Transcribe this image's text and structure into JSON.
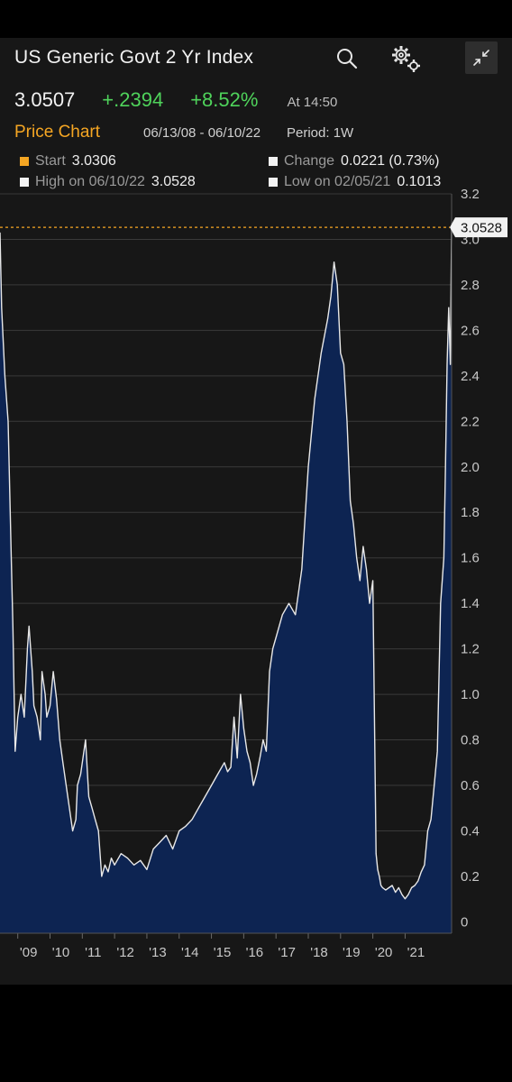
{
  "header": {
    "title": "US Generic Govt 2 Yr Index",
    "last_price": "3.0507",
    "net_change": "+.2394",
    "pct_change": "+8.52%",
    "time": "At 14:50"
  },
  "subheader": {
    "chart_label": "Price Chart",
    "date_range": "06/13/08 - 06/10/22",
    "period": "Period: 1W"
  },
  "stats": {
    "start_label": "Start",
    "start_value": "3.0306",
    "change_label": "Change",
    "change_value": "0.0221 (0.73%)",
    "high_label": "High on 06/10/22",
    "high_value": "3.0528",
    "low_label": "Low on 02/05/21",
    "low_value": "0.1013"
  },
  "icons": {
    "search": "search-icon",
    "settings": "gear-icon",
    "collapse": "collapse-icon"
  },
  "colors": {
    "background": "#171717",
    "area_fill": "#0d2452",
    "line": "#e8e8e8",
    "positive": "#4fd35b",
    "accent": "#f5a623",
    "high_marker": "#f5a623"
  },
  "chart_data": {
    "type": "area",
    "title": "US Generic Govt 2 Yr Index",
    "xlabel": "",
    "ylabel": "",
    "x_tick_labels": [
      "'09",
      "'10",
      "'11",
      "'12",
      "'13",
      "'14",
      "'15",
      "'16",
      "'17",
      "'18",
      "'19",
      "'20",
      "'21"
    ],
    "y_tick_labels": [
      "0",
      "0.2",
      "0.4",
      "0.6",
      "0.8",
      "1.0",
      "1.2",
      "1.4",
      "1.6",
      "1.8",
      "2.0",
      "2.2",
      "2.4",
      "2.6",
      "2.8",
      "3.0",
      "3.2"
    ],
    "xlim": [
      2008.45,
      2022.44
    ],
    "ylim": [
      -0.05,
      3.2
    ],
    "high_marker": {
      "value": 3.0528,
      "label": "3.0528"
    },
    "grid": true,
    "series": [
      {
        "x": [
          2008.45,
          2008.5,
          2008.6,
          2008.7,
          2008.8,
          2008.85,
          2008.92,
          2009.0,
          2009.1,
          2009.2,
          2009.3,
          2009.35,
          2009.45,
          2009.5,
          2009.6,
          2009.7,
          2009.75,
          2009.85,
          2009.9,
          2010.0,
          2010.1,
          2010.2,
          2010.3,
          2010.4,
          2010.5,
          2010.6,
          2010.7,
          2010.8,
          2010.85,
          2010.95,
          2011.0,
          2011.1,
          2011.2,
          2011.3,
          2011.4,
          2011.5,
          2011.6,
          2011.7,
          2011.8,
          2011.9,
          2012.0,
          2012.2,
          2012.4,
          2012.6,
          2012.8,
          2013.0,
          2013.2,
          2013.4,
          2013.6,
          2013.8,
          2014.0,
          2014.2,
          2014.4,
          2014.6,
          2014.8,
          2015.0,
          2015.2,
          2015.4,
          2015.5,
          2015.6,
          2015.7,
          2015.8,
          2015.9,
          2016.0,
          2016.1,
          2016.2,
          2016.3,
          2016.4,
          2016.5,
          2016.6,
          2016.7,
          2016.8,
          2016.9,
          2017.0,
          2017.2,
          2017.4,
          2017.6,
          2017.8,
          2018.0,
          2018.2,
          2018.4,
          2018.6,
          2018.7,
          2018.8,
          2018.9,
          2019.0,
          2019.1,
          2019.2,
          2019.3,
          2019.4,
          2019.5,
          2019.6,
          2019.7,
          2019.8,
          2019.9,
          2020.0,
          2020.1,
          2020.15,
          2020.2,
          2020.25,
          2020.3,
          2020.4,
          2020.5,
          2020.6,
          2020.7,
          2020.8,
          2020.9,
          2021.0,
          2021.1,
          2021.2,
          2021.3,
          2021.4,
          2021.5,
          2021.6,
          2021.7,
          2021.8,
          2021.9,
          2022.0,
          2022.1,
          2022.2,
          2022.25,
          2022.3,
          2022.35,
          2022.4,
          2022.44
        ],
        "values": [
          3.03,
          2.7,
          2.4,
          2.2,
          1.6,
          1.3,
          0.75,
          0.9,
          1.0,
          0.9,
          1.2,
          1.3,
          1.1,
          0.95,
          0.9,
          0.8,
          1.1,
          1.0,
          0.9,
          0.95,
          1.1,
          0.98,
          0.8,
          0.7,
          0.6,
          0.5,
          0.4,
          0.45,
          0.6,
          0.65,
          0.7,
          0.8,
          0.55,
          0.5,
          0.45,
          0.4,
          0.2,
          0.25,
          0.22,
          0.28,
          0.25,
          0.3,
          0.28,
          0.25,
          0.27,
          0.23,
          0.32,
          0.35,
          0.38,
          0.32,
          0.4,
          0.42,
          0.45,
          0.5,
          0.55,
          0.6,
          0.65,
          0.7,
          0.66,
          0.68,
          0.9,
          0.72,
          1.0,
          0.85,
          0.75,
          0.7,
          0.6,
          0.65,
          0.72,
          0.8,
          0.75,
          1.1,
          1.2,
          1.25,
          1.35,
          1.4,
          1.35,
          1.55,
          2.0,
          2.3,
          2.5,
          2.65,
          2.75,
          2.9,
          2.8,
          2.5,
          2.45,
          2.2,
          1.85,
          1.75,
          1.6,
          1.5,
          1.65,
          1.55,
          1.4,
          1.5,
          0.3,
          0.23,
          0.2,
          0.16,
          0.15,
          0.14,
          0.15,
          0.16,
          0.13,
          0.15,
          0.12,
          0.1013,
          0.12,
          0.15,
          0.16,
          0.18,
          0.22,
          0.25,
          0.4,
          0.45,
          0.6,
          0.75,
          1.4,
          1.6,
          2.0,
          2.45,
          2.7,
          2.45,
          3.05
        ]
      }
    ]
  }
}
